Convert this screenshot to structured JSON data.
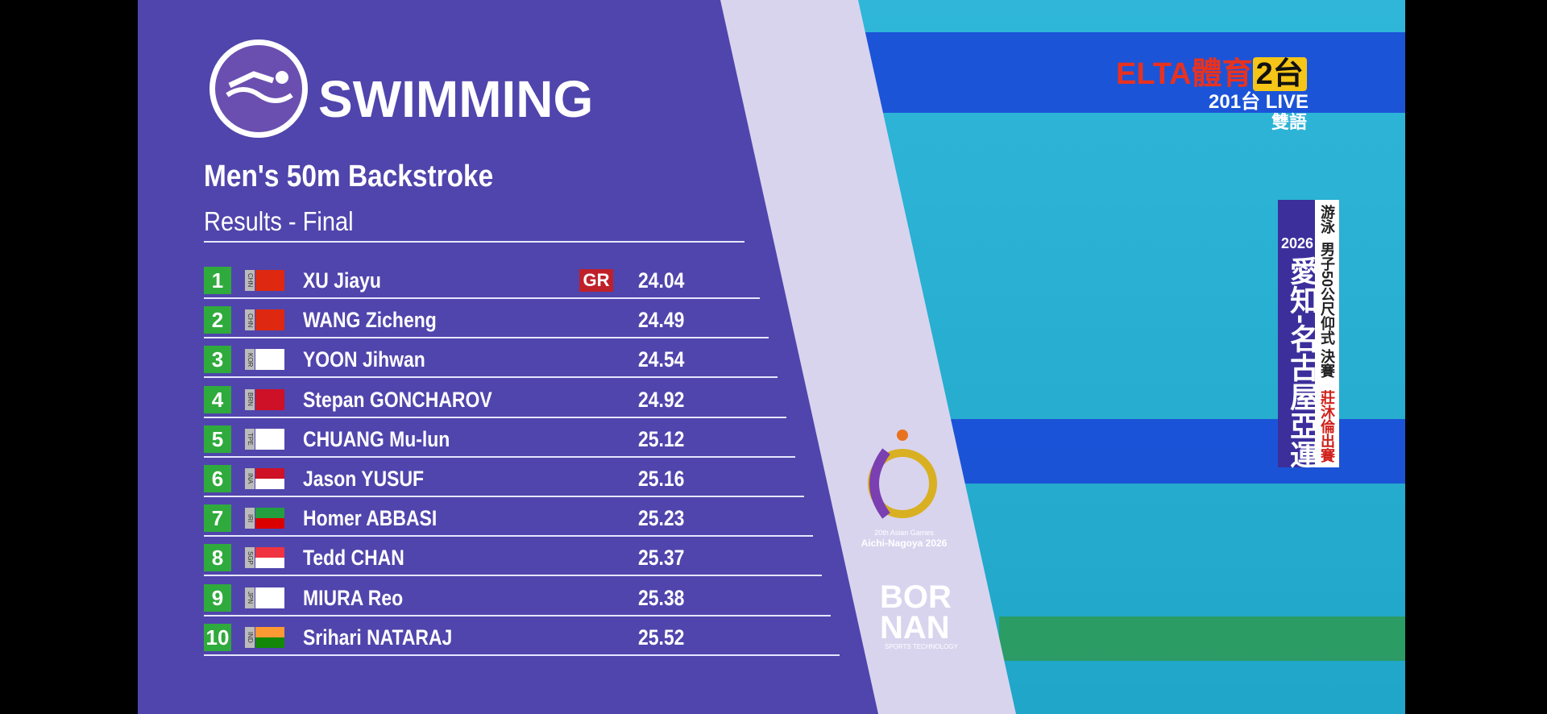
{
  "header": {
    "title": "SWIMMING",
    "event": "Men's 50m Backstroke",
    "phase": "Results - Final"
  },
  "table": {
    "rows": [
      [
        "1",
        "CHN",
        "XU Jiayu",
        "GR",
        "24.04"
      ],
      [
        "2",
        "CHN",
        "WANG Zicheng",
        null,
        "24.49"
      ],
      [
        "3",
        "KOR",
        "YOON Jihwan",
        null,
        "24.54"
      ],
      [
        "4",
        "BRN",
        "Stepan GONCHAROV",
        null,
        "24.92"
      ],
      [
        "5",
        "TPE",
        "CHUANG Mu-lun",
        null,
        "25.12"
      ],
      [
        "6",
        "INA",
        "Jason YUSUF",
        null,
        "25.16"
      ],
      [
        "7",
        "IRI",
        "Homer ABBASI",
        null,
        "25.23"
      ],
      [
        "8",
        "SGP",
        "Tedd CHAN",
        null,
        "25.37"
      ],
      [
        "9",
        "JPN",
        "MIURA Reo",
        null,
        "25.38"
      ],
      [
        "10",
        "IND",
        "Srihari NATARAJ",
        null,
        "25.52"
      ]
    ]
  },
  "logos": {
    "games": "20th Asian Games",
    "city": "Aichi-Nagoya 2026",
    "sponsor": [
      "BOR",
      "NAN"
    ],
    "sponsor_tag": "SPORTS TECHNOLOGY"
  },
  "broadcaster": {
    "brand": "ELTA",
    "sport": "體育",
    "channel": "2台",
    "live": "201台 LIVE",
    "language": "雙語"
  },
  "banner": {
    "year": "2026",
    "games": "愛知-名古屋亞運",
    "sport": "游泳",
    "event": "男子50公尺仰式 決賽",
    "note": "莊沐倫出賽"
  }
}
